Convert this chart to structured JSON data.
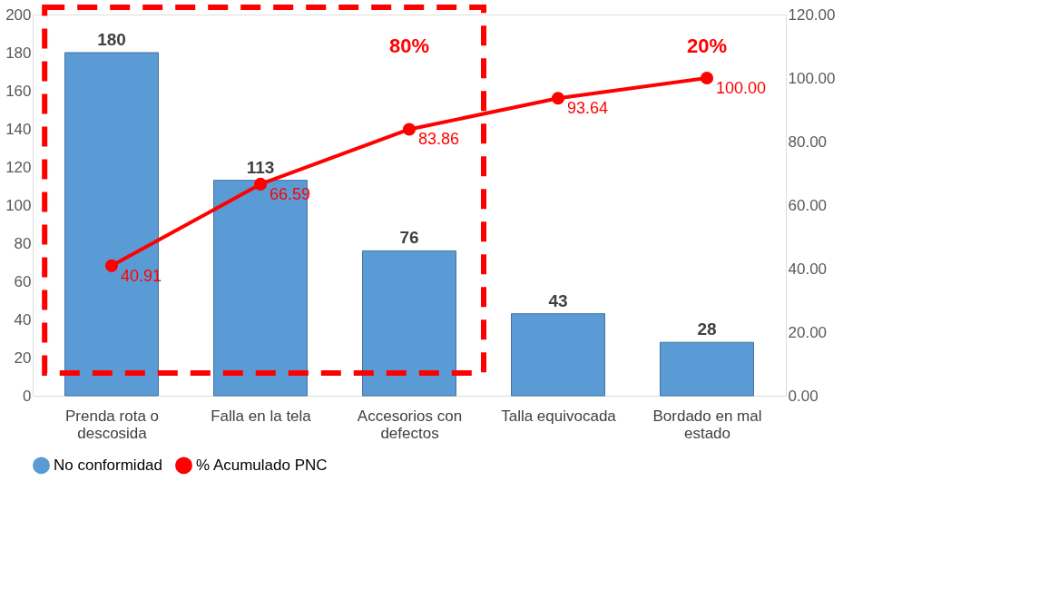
{
  "chart_data": {
    "type": "bar",
    "categories": [
      "Prenda rota o descosida",
      "Falla en la tela",
      "Accesorios con defectos",
      "Talla equivocada",
      "Bordado en mal estado"
    ],
    "series": [
      {
        "name": "No conformidad",
        "color": "#5b9bd5",
        "values": [
          180,
          113,
          76,
          43,
          28
        ],
        "value_labels": [
          "180",
          "113",
          "76",
          "43",
          "28"
        ]
      },
      {
        "name": "% Acumulado PNC",
        "type": "line",
        "axis": "y2",
        "color": "#ff0000",
        "values": [
          40.91,
          66.59,
          83.86,
          93.64,
          100.0
        ],
        "value_labels": [
          "40.91",
          "66.59",
          "83.86",
          "93.64",
          "100.00"
        ]
      }
    ],
    "ylim": [
      0,
      200
    ],
    "yticks": [
      0,
      20,
      40,
      60,
      80,
      100,
      120,
      140,
      160,
      180,
      200
    ],
    "y2lim": [
      0,
      120
    ],
    "y2ticks": [
      {
        "value": 0,
        "label": "0.00"
      },
      {
        "value": 20,
        "label": "20.00"
      },
      {
        "value": 40,
        "label": "40.00"
      },
      {
        "value": 60,
        "label": "60.00"
      },
      {
        "value": 80,
        "label": "80.00"
      },
      {
        "value": 100,
        "label": "100.00"
      },
      {
        "value": 120,
        "label": "120.00"
      }
    ],
    "annotations": [
      "80%",
      "20%"
    ],
    "marker": "circle",
    "line_style": "solid",
    "grid": false,
    "legend": "bottom"
  }
}
